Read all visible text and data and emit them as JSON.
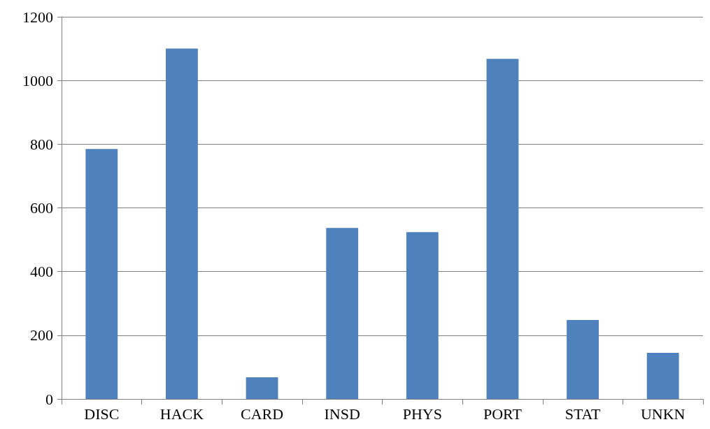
{
  "chart_data": {
    "type": "bar",
    "categories": [
      "DISC",
      "HACK",
      "CARD",
      "INSD",
      "PHYS",
      "PORT",
      "STAT",
      "UNKN"
    ],
    "values": [
      785,
      1100,
      68,
      537,
      524,
      1068,
      248,
      145
    ],
    "color": "#4f81bd",
    "ylim": [
      0,
      1200
    ],
    "yticks": [
      0,
      200,
      400,
      600,
      800,
      1000,
      1200
    ],
    "grid": "y"
  }
}
